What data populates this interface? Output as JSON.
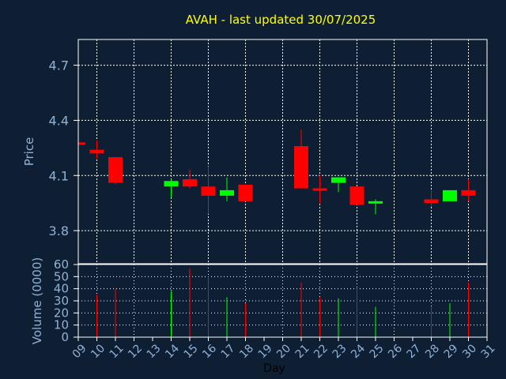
{
  "chart_data": {
    "type": "candlestick",
    "title": "AVAH - last updated 30/07/2025",
    "xlabel": "Day",
    "price_panel": {
      "ylabel": "Price",
      "ylim": [
        3.62,
        4.84
      ],
      "yticks": [
        "3.8",
        "4.1",
        "4.4",
        "4.7"
      ],
      "candles": [
        {
          "day": 9,
          "open": 4.28,
          "high": 4.28,
          "low": 4.27,
          "close": 4.27
        },
        {
          "day": 10,
          "open": 4.24,
          "high": 4.29,
          "low": 4.19,
          "close": 4.22
        },
        {
          "day": 11,
          "open": 4.2,
          "high": 4.2,
          "low": 4.05,
          "close": 4.06
        },
        {
          "day": 14,
          "open": 4.04,
          "high": 4.08,
          "low": 3.98,
          "close": 4.07
        },
        {
          "day": 15,
          "open": 4.08,
          "high": 4.13,
          "low": 4.03,
          "close": 4.04
        },
        {
          "day": 16,
          "open": 4.04,
          "high": 4.15,
          "low": 3.89,
          "close": 3.99
        },
        {
          "day": 17,
          "open": 3.99,
          "high": 4.09,
          "low": 3.96,
          "close": 4.02
        },
        {
          "day": 18,
          "open": 4.05,
          "high": 4.05,
          "low": 3.96,
          "close": 3.96
        },
        {
          "day": 21,
          "open": 4.26,
          "high": 4.35,
          "low": 4.03,
          "close": 4.03
        },
        {
          "day": 22,
          "open": 4.03,
          "high": 4.1,
          "low": 3.95,
          "close": 4.02
        },
        {
          "day": 23,
          "open": 4.06,
          "high": 4.09,
          "low": 4.01,
          "close": 4.09
        },
        {
          "day": 24,
          "open": 4.04,
          "high": 4.04,
          "low": 3.94,
          "close": 3.94
        },
        {
          "day": 25,
          "open": 3.95,
          "high": 3.97,
          "low": 3.89,
          "close": 3.96
        },
        {
          "day": 28,
          "open": 3.97,
          "high": 4.02,
          "low": 3.93,
          "close": 3.95
        },
        {
          "day": 29,
          "open": 3.96,
          "high": 4.02,
          "low": 3.96,
          "close": 4.02
        },
        {
          "day": 30,
          "open": 4.02,
          "high": 4.08,
          "low": 3.96,
          "close": 3.99
        }
      ]
    },
    "volume_panel": {
      "ylabel": "Volume (0000)",
      "ylim": [
        0,
        60
      ],
      "yticks": [
        "0",
        "10",
        "20",
        "30",
        "40",
        "50",
        "60"
      ],
      "bars": [
        {
          "day": 10,
          "value": 35,
          "direction": "down"
        },
        {
          "day": 11,
          "value": 40,
          "direction": "down"
        },
        {
          "day": 14,
          "value": 38,
          "direction": "up"
        },
        {
          "day": 15,
          "value": 57,
          "direction": "down"
        },
        {
          "day": 16,
          "value": 50,
          "direction": "down"
        },
        {
          "day": 17,
          "value": 33,
          "direction": "up"
        },
        {
          "day": 18,
          "value": 28,
          "direction": "down"
        },
        {
          "day": 21,
          "value": 45,
          "direction": "down"
        },
        {
          "day": 22,
          "value": 33,
          "direction": "down"
        },
        {
          "day": 23,
          "value": 32,
          "direction": "up"
        },
        {
          "day": 24,
          "value": 40,
          "direction": "down"
        },
        {
          "day": 25,
          "value": 25,
          "direction": "up"
        },
        {
          "day": 28,
          "value": 25,
          "direction": "down"
        },
        {
          "day": 29,
          "value": 28,
          "direction": "up"
        },
        {
          "day": 30,
          "value": 45,
          "direction": "down"
        }
      ]
    },
    "x_days": [
      "09",
      "10",
      "11",
      "12",
      "13",
      "14",
      "15",
      "16",
      "17",
      "18",
      "19",
      "20",
      "21",
      "22",
      "23",
      "24",
      "25",
      "26",
      "27",
      "28",
      "29",
      "30",
      "31"
    ],
    "grid": true,
    "colors": {
      "background": "#0f1f33",
      "title": "#ffff00",
      "tick": "#8fb2d8",
      "grid": "#ffffff",
      "up": "#00ff00",
      "down": "#ff0000"
    }
  }
}
